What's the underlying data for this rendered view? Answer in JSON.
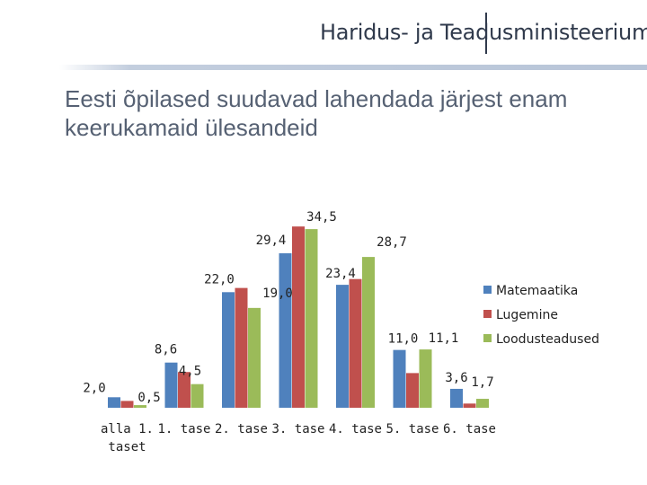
{
  "header": {
    "logo_part1": "Haridus- ja Teadus",
    "logo_part2": "ministeerium"
  },
  "slide": {
    "title": "Eesti õpilased suudavad lahendada järjest enam keerukamaid ülesandeid"
  },
  "chart_data": {
    "type": "bar",
    "title": "Eesti õpilased suudavad lahendada järjest enam keerukamaid ülesandeid",
    "categories": [
      "alla 1. taset",
      "1. tase",
      "2. tase",
      "3. tase",
      "4. tase",
      "5. tase",
      "6. tase"
    ],
    "category_lines": [
      [
        "alla 1.",
        "taset"
      ],
      [
        "1. tase"
      ],
      [
        "2. tase"
      ],
      [
        "3. tase"
      ],
      [
        "4. tase"
      ],
      [
        "5. tase"
      ],
      [
        "6. tase"
      ]
    ],
    "series": [
      {
        "name": "Matemaatika",
        "color": "#4f81bd",
        "values": [
          2.0,
          8.6,
          22.0,
          29.4,
          23.4,
          11.0,
          3.6
        ]
      },
      {
        "name": "Lugemine",
        "color": "#c0504d",
        "values": [
          1.3,
          6.8,
          22.8,
          34.5,
          24.5,
          6.6,
          0.8
        ]
      },
      {
        "name": "Loodusteadused",
        "color": "#9bbb59",
        "values": [
          0.5,
          4.5,
          19.0,
          34.0,
          28.7,
          11.1,
          1.7
        ]
      }
    ],
    "data_labels": [
      {
        "text": "2,0",
        "category": 0,
        "series": 0
      },
      {
        "text": "0,5",
        "category": 0,
        "series": 2
      },
      {
        "text": "8,6",
        "category": 1,
        "series": 0
      },
      {
        "text": "4,5",
        "category": 1,
        "series": 2
      },
      {
        "text": "22,0",
        "category": 2,
        "series": 0
      },
      {
        "text": "19,0",
        "category": 2,
        "series": 2
      },
      {
        "text": "29,4",
        "category": 3,
        "series": 0
      },
      {
        "text": "34,5",
        "category": 3,
        "series": 1
      },
      {
        "text": "23,4",
        "category": 4,
        "series": 0
      },
      {
        "text": "28,7",
        "category": 4,
        "series": 2
      },
      {
        "text": "11,0",
        "category": 5,
        "series": 0
      },
      {
        "text": "11,1",
        "category": 5,
        "series": 2
      },
      {
        "text": "3,6",
        "category": 6,
        "series": 0
      },
      {
        "text": "1,7",
        "category": 6,
        "series": 2
      }
    ],
    "ylim": [
      0,
      35
    ],
    "legend": "right",
    "grid": false,
    "xlabel": "",
    "ylabel": ""
  }
}
